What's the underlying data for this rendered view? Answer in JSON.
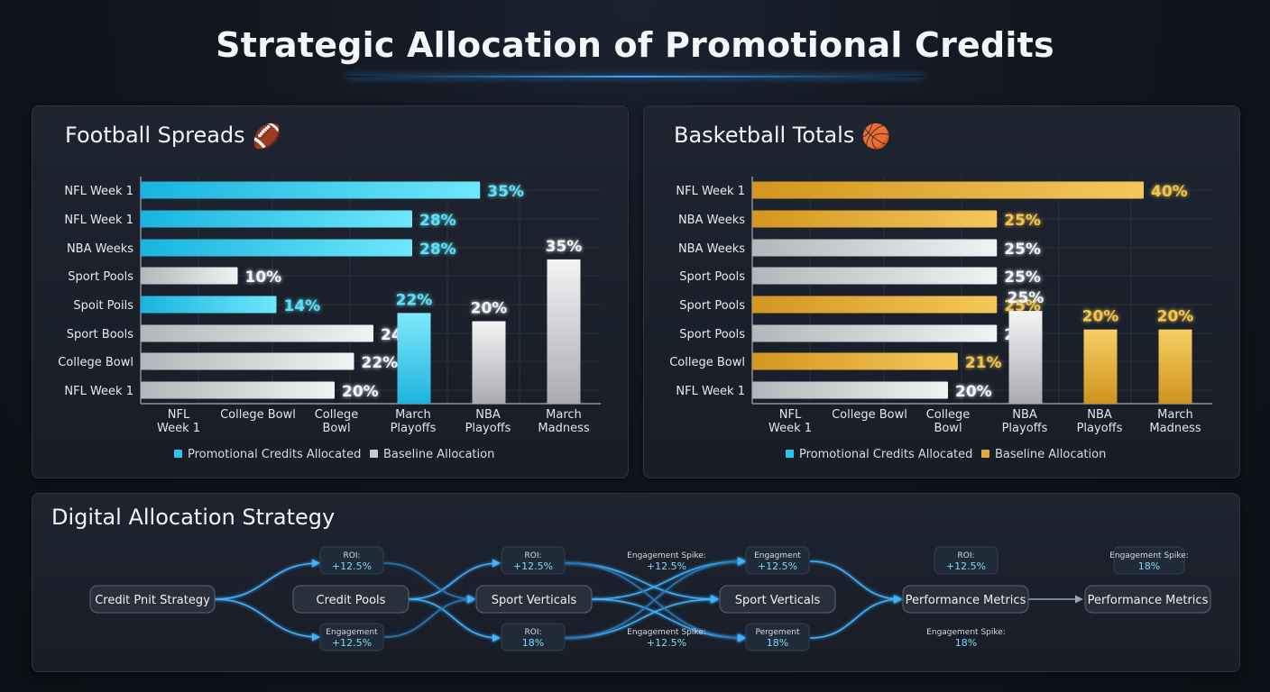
{
  "title": "Strategic Allocation of Promotional Credits",
  "chart_data": [
    {
      "type": "bar",
      "panel_title": "Football Spreads",
      "panel_icon": "🏈",
      "horizontal_bars": [
        {
          "label": "NFL Week 1",
          "value": 35,
          "series": "Promotional Credits Allocated"
        },
        {
          "label": "NFL Week 1",
          "value": 28,
          "series": "Promotional Credits Allocated"
        },
        {
          "label": "NBA Weeks",
          "value": 28,
          "series": "Promotional Credits Allocated"
        },
        {
          "label": "Sport Pools",
          "value": 10,
          "series": "Baseline Allocation"
        },
        {
          "label": "Spoit Poils",
          "value": 14,
          "series": "Promotional Credits Allocated"
        },
        {
          "label": "Sport Bools",
          "value": 24,
          "series": "Baseline Allocation"
        },
        {
          "label": "College Bowl",
          "value": 22,
          "series": "Baseline Allocation"
        },
        {
          "label": "NFL Week 1",
          "value": 20,
          "series": "Baseline Allocation"
        }
      ],
      "vertical_bars": [
        {
          "value": 22,
          "series": "Promotional Credits Allocated"
        },
        {
          "value": 20,
          "series": "Baseline Allocation"
        },
        {
          "value": 35,
          "series": "Baseline Allocation"
        }
      ],
      "x_categories": [
        "NFL\nWeek 1",
        "College Bowl",
        "College\nBowl",
        "March\nPlayoffs",
        "NBA\nPlayoffs",
        "March\nMadness"
      ],
      "legend": [
        "Promotional Credits Allocated",
        "Baseline Allocation"
      ],
      "colors": {
        "primary": "#2ec4ea",
        "baseline": "#c9cbd0"
      },
      "grid": true
    },
    {
      "type": "bar",
      "panel_title": "Basketball Totals",
      "panel_icon": "🏀",
      "horizontal_bars": [
        {
          "label": "NFL Week 1",
          "value": 40,
          "series": "Baseline Allocation"
        },
        {
          "label": "NBA Weeks",
          "value": 25,
          "series": "Baseline Allocation"
        },
        {
          "label": "NBA Weeks",
          "value": 25,
          "series": "Promotional Credits Allocated"
        },
        {
          "label": "Sport Pools",
          "value": 25,
          "series": "Promotional Credits Allocated"
        },
        {
          "label": "Sport Pools",
          "value": 25,
          "series": "Baseline Allocation"
        },
        {
          "label": "Sport Pools",
          "value": 25,
          "series": "Promotional Credits Allocated"
        },
        {
          "label": "College Bowl",
          "value": 21,
          "series": "Baseline Allocation"
        },
        {
          "label": "NFL Week 1",
          "value": 20,
          "series": "Promotional Credits Allocated"
        }
      ],
      "vertical_bars": [
        {
          "value": 25,
          "series": "Promotional Credits Allocated"
        },
        {
          "value": 20,
          "series": "Baseline Allocation"
        },
        {
          "value": 20,
          "series": "Baseline Allocation"
        }
      ],
      "x_categories": [
        "NFL\nWeek 1",
        "College Bowl",
        "College\nBowl",
        "NBA\nPlayoffs",
        "NBA\nPlayoffs",
        "March\nMadness"
      ],
      "legend": [
        "Promotional Credits Allocated",
        "Baseline Allocation"
      ],
      "colors": {
        "primary": "#c9cbd0",
        "baseline": "#e3ab3a",
        "legend_primary": "#2ec4ea"
      },
      "grid": true
    }
  ],
  "flow": {
    "title": "Digital Allocation Strategy",
    "nodes": {
      "credit_pnit": "Credit Pnit Strategy",
      "credit_pools": "Credit Pools",
      "sport_verticals_1": "Sport Verticals",
      "sport_verticals_2": "Sport Verticals",
      "performance_metrics_1": "Performance Metrics",
      "performance_metrics_2": "Performance Metrics"
    },
    "badges": [
      {
        "label": "ROI:",
        "value": "+12.5%"
      },
      {
        "label": "Engagement",
        "value": "+12.5%"
      },
      {
        "label": "ROI:",
        "value": "+12.5%"
      },
      {
        "label": "ROI:",
        "value": "18%"
      },
      {
        "label": "Engagement Spike:",
        "value": "+12.5%"
      },
      {
        "label": "Engagement Spike:",
        "value": "+12.5%"
      },
      {
        "label": "Engagment",
        "value": "+12.5%"
      },
      {
        "label": "Pergement",
        "value": "18%"
      },
      {
        "label": "ROI:",
        "value": "+12.5%"
      },
      {
        "label": "Engagement Spike:",
        "value": "18%"
      },
      {
        "label": "Engagement Spike:",
        "value": "18%"
      }
    ]
  }
}
